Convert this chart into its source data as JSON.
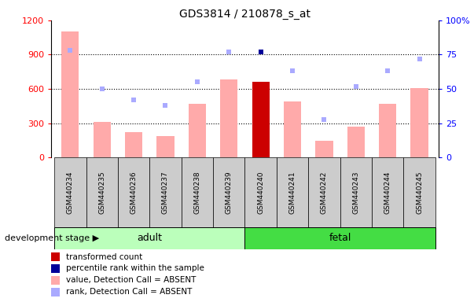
{
  "title": "GDS3814 / 210878_s_at",
  "samples": [
    "GSM440234",
    "GSM440235",
    "GSM440236",
    "GSM440237",
    "GSM440238",
    "GSM440239",
    "GSM440240",
    "GSM440241",
    "GSM440242",
    "GSM440243",
    "GSM440244",
    "GSM440245"
  ],
  "bar_values": [
    1100,
    310,
    220,
    190,
    470,
    680,
    660,
    490,
    150,
    270,
    470,
    610
  ],
  "bar_colors": [
    "#ffaaaa",
    "#ffaaaa",
    "#ffaaaa",
    "#ffaaaa",
    "#ffaaaa",
    "#ffaaaa",
    "#cc0000",
    "#ffaaaa",
    "#ffaaaa",
    "#ffaaaa",
    "#ffaaaa",
    "#ffaaaa"
  ],
  "rank_values": [
    78,
    50,
    42,
    38,
    55,
    77,
    77,
    63,
    28,
    52,
    63,
    72
  ],
  "rank_colors": [
    "#aaaaff",
    "#aaaaff",
    "#aaaaff",
    "#aaaaff",
    "#aaaaff",
    "#aaaaff",
    "#000099",
    "#aaaaff",
    "#aaaaff",
    "#aaaaff",
    "#aaaaff",
    "#aaaaff"
  ],
  "adult_label": "adult",
  "fetal_label": "fetal",
  "stage_label": "development stage",
  "ylim_left": [
    0,
    1200
  ],
  "ylim_right": [
    0,
    100
  ],
  "yticks_left": [
    0,
    300,
    600,
    900,
    1200
  ],
  "ytick_labels_right": [
    "0",
    "25",
    "50",
    "75",
    "100%"
  ],
  "bar_width": 0.55,
  "marker_size": 5,
  "legend_items": [
    {
      "label": "transformed count",
      "color": "#cc0000"
    },
    {
      "label": "percentile rank within the sample",
      "color": "#000099"
    },
    {
      "label": "value, Detection Call = ABSENT",
      "color": "#ffaaaa"
    },
    {
      "label": "rank, Detection Call = ABSENT",
      "color": "#aaaaff"
    }
  ],
  "adult_bg": "#bbffbb",
  "fetal_bg": "#44dd44",
  "ticklabel_bg": "#cccccc"
}
